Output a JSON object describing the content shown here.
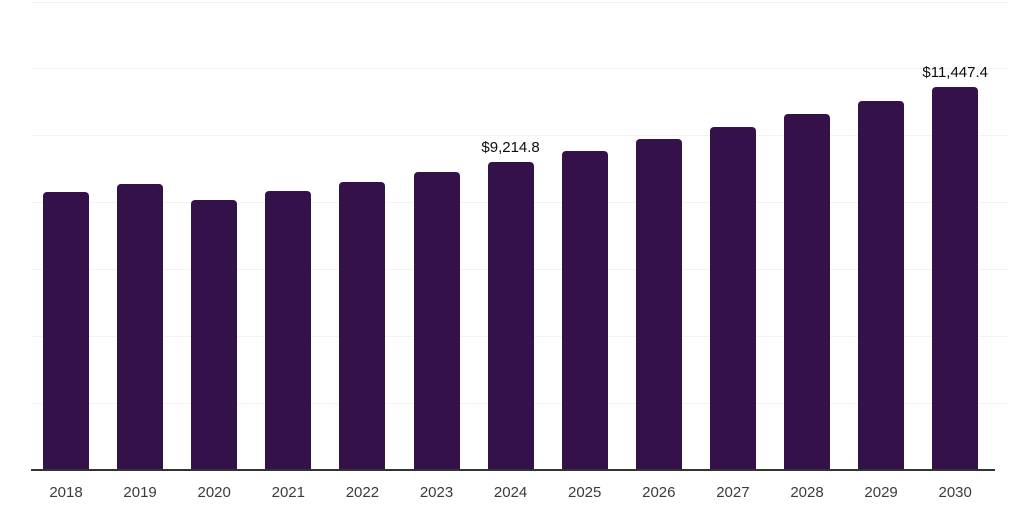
{
  "chart_data": {
    "type": "bar",
    "title": "",
    "xlabel": "",
    "ylabel": "",
    "categories": [
      "2018",
      "2019",
      "2020",
      "2021",
      "2022",
      "2023",
      "2024",
      "2025",
      "2026",
      "2027",
      "2028",
      "2029",
      "2030"
    ],
    "values": [
      8320,
      8570,
      8090,
      8350,
      8620,
      8900,
      9214.8,
      9555,
      9910,
      10275,
      10655,
      11050,
      11447.4
    ],
    "value_labels": [
      null,
      null,
      null,
      null,
      null,
      null,
      "$9,214.8",
      null,
      null,
      null,
      null,
      null,
      "$11,447.4"
    ],
    "ylim": [
      0,
      14000
    ],
    "grid_interval": 2000,
    "grid": true,
    "legend": false,
    "y_tick_labels_visible": false,
    "bar_color": "#35114a",
    "axis_color": "#333333",
    "gridline_color": "#f3f3f5",
    "tick_label_color": "#3b3b3b",
    "data_label_color": "#0d0d0d",
    "background_color": "#ffffff"
  }
}
